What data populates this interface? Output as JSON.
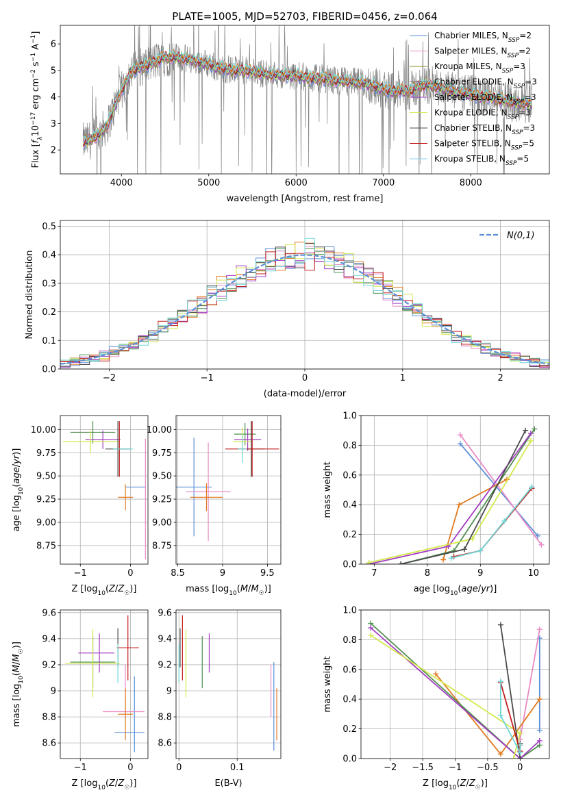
{
  "colors": {
    "Chabrier MILES": "#5b8fd8",
    "Salpeter MILES": "#e88bc4",
    "Kroupa MILES": "#8c8c2a",
    "Chabrier ELODIE": "#7c7c7c",
    "Salpeter ELODIE": "#a23bc0",
    "Kroupa ELODIE": "#d4e84a",
    "Chabrier STELIB": "#4a4a4a",
    "Salpeter STELIB": "#c41c1c",
    "Kroupa STELIB": "#8fd0ec",
    "orange": "#e07a1f",
    "green": "#4f8f4f",
    "cyan": "#6fd6d6",
    "normal": "#5b8fd8"
  },
  "chart_data": [
    {
      "type": "line",
      "title": "PLATE=1005, MJD=52703, FIBERID=0456, z=0.064",
      "xlabel": "wavelength [Angstrom, rest frame]",
      "ylabel": "Flux [f_λ 10^-17 erg cm^-2 s^-1 A^-1]",
      "xlim": [
        3300,
        8900
      ],
      "ylim": [
        1.1,
        6.7
      ],
      "xticks": [
        4000,
        5000,
        6000,
        7000,
        8000
      ],
      "yticks": [
        2,
        3,
        4,
        5,
        6
      ],
      "legend": "upper right",
      "legend_entries": [
        {
          "pre": "Chabrier MILES, N",
          "sub": "SSP",
          "post": "=2",
          "key": "Chabrier MILES"
        },
        {
          "pre": "Salpeter MILES, N",
          "sub": "SSP",
          "post": "=2",
          "key": "Salpeter MILES"
        },
        {
          "pre": "Kroupa MILES, N",
          "sub": "SSP",
          "post": "=3",
          "key": "Kroupa MILES"
        },
        {
          "pre": "Chabrier ELODIE, N",
          "sub": "SSP",
          "post": "=3",
          "key": "Chabrier ELODIE"
        },
        {
          "pre": "Salpeter ELODIE, N",
          "sub": "SSP",
          "post": "=3",
          "key": "Salpeter ELODIE"
        },
        {
          "pre": "Kroupa ELODIE, N",
          "sub": "SSP",
          "post": "=3",
          "key": "Kroupa ELODIE"
        },
        {
          "pre": "Chabrier STELIB, N",
          "sub": "SSP",
          "post": "=3",
          "key": "Chabrier STELIB"
        },
        {
          "pre": "Salpeter STELIB, N",
          "sub": "SSP",
          "post": "=5",
          "key": "Salpeter STELIB"
        },
        {
          "pre": "Kroupa STELIB, N",
          "sub": "SSP",
          "post": "=5",
          "key": "Kroupa STELIB"
        }
      ],
      "continuum": [
        [
          3600,
          2.3
        ],
        [
          3750,
          2.6
        ],
        [
          3850,
          3.0
        ],
        [
          3950,
          3.9
        ],
        [
          4000,
          4.2
        ],
        [
          4100,
          4.9
        ],
        [
          4200,
          5.1
        ],
        [
          4300,
          5.2
        ],
        [
          4400,
          5.35
        ],
        [
          4500,
          5.5
        ],
        [
          4600,
          5.5
        ],
        [
          4700,
          5.45
        ],
        [
          4800,
          5.4
        ],
        [
          4900,
          5.3
        ],
        [
          5000,
          5.25
        ],
        [
          5100,
          5.1
        ],
        [
          5200,
          5.05
        ],
        [
          5300,
          5.0
        ],
        [
          5400,
          5.0
        ],
        [
          5500,
          4.95
        ],
        [
          5600,
          4.9
        ],
        [
          5700,
          4.85
        ],
        [
          5800,
          4.85
        ],
        [
          5900,
          4.8
        ],
        [
          6000,
          4.8
        ],
        [
          6100,
          4.75
        ],
        [
          6200,
          4.7
        ],
        [
          6300,
          4.7
        ],
        [
          6400,
          4.65
        ],
        [
          6500,
          4.6
        ],
        [
          6600,
          4.6
        ],
        [
          6700,
          4.55
        ],
        [
          6800,
          4.5
        ],
        [
          6900,
          4.4
        ],
        [
          7000,
          4.3
        ],
        [
          7100,
          4.2
        ],
        [
          7200,
          4.25
        ],
        [
          7300,
          4.2
        ],
        [
          7400,
          4.4
        ],
        [
          7500,
          4.45
        ],
        [
          7600,
          4.4
        ],
        [
          7700,
          4.3
        ],
        [
          7800,
          4.2
        ],
        [
          7900,
          4.15
        ],
        [
          8000,
          4.1
        ],
        [
          8100,
          4.0
        ],
        [
          8200,
          4.0
        ],
        [
          8300,
          3.9
        ],
        [
          8400,
          3.85
        ],
        [
          8500,
          3.8
        ],
        [
          8650,
          3.75
        ]
      ]
    },
    {
      "type": "bar",
      "title": "",
      "xlabel": "(data-model)/error",
      "ylabel": "Normed distribution",
      "xlim": [
        -2.5,
        2.5
      ],
      "ylim": [
        0,
        0.52
      ],
      "xticks": [
        -2,
        -1,
        0,
        1,
        2
      ],
      "yticks": [
        0.0,
        0.1,
        0.2,
        0.3,
        0.4,
        0.5
      ],
      "legend": "upper right",
      "legend_label": "N(0,1)",
      "bin_width": 0.1
    },
    {
      "type": "scatter",
      "xlabel": "Z [log10(Z/Z☉)]",
      "ylabel": "age  [log10(age/yr)]",
      "xlim": [
        -1.4,
        0.35
      ],
      "ylim": [
        8.55,
        10.15
      ],
      "xticks": [
        -1,
        0
      ],
      "yticks": [
        8.75,
        9.0,
        9.25,
        9.5,
        9.75,
        10.0
      ],
      "points": [
        {
          "x": 0.1,
          "y": 9.38,
          "xerr": [
            0.2,
            0.2
          ],
          "yerr": [
            0.0,
            0.0
          ],
          "color": "Chabrier MILES"
        },
        {
          "x": 0.3,
          "y": 9.25,
          "xerr": [
            0.0,
            0.0
          ],
          "yerr": [
            0.65,
            0.65
          ],
          "color": "Salpeter MILES"
        },
        {
          "x": -0.1,
          "y": 9.27,
          "xerr": [
            0.15,
            0.15
          ],
          "yerr": [
            0.14,
            0.14
          ],
          "color": "orange"
        },
        {
          "x": -0.75,
          "y": 9.97,
          "xerr": [
            0.45,
            0.45
          ],
          "yerr": [
            0.12,
            0.12
          ],
          "color": "green"
        },
        {
          "x": -0.55,
          "y": 9.89,
          "xerr": [
            0.35,
            0.35
          ],
          "yerr": [
            0.1,
            0.1
          ],
          "color": "Salpeter ELODIE"
        },
        {
          "x": -0.8,
          "y": 9.87,
          "xerr": [
            0.55,
            0.55
          ],
          "yerr": [
            0.12,
            0.12
          ],
          "color": "Kroupa ELODIE"
        },
        {
          "x": -0.25,
          "y": 9.79,
          "xerr": [
            0.25,
            0.25
          ],
          "yerr": [
            0.3,
            0.3
          ],
          "color": "Chabrier STELIB"
        },
        {
          "x": -0.22,
          "y": 9.79,
          "xerr": [
            0.0,
            0.0
          ],
          "yerr": [
            0.3,
            0.3
          ],
          "color": "Salpeter STELIB"
        },
        {
          "x": -0.15,
          "y": 9.79,
          "xerr": [
            0.2,
            0.2
          ],
          "yerr": [
            0.0,
            0.0
          ],
          "color": "cyan"
        }
      ]
    },
    {
      "type": "scatter",
      "xlabel": "mass [log10(M/M☉)]",
      "ylabel": "",
      "xlim": [
        8.48,
        9.65
      ],
      "ylim": [
        8.55,
        10.15
      ],
      "xticks": [
        8.5,
        9.0,
        9.5
      ],
      "yticks": [
        8.75,
        9.0,
        9.25,
        9.5,
        9.75,
        10.0
      ],
      "points": [
        {
          "x": 8.68,
          "y": 9.38,
          "xerr": [
            0.2,
            0.2
          ],
          "yerr": [
            0.53,
            0.53
          ],
          "color": "Chabrier MILES"
        },
        {
          "x": 8.84,
          "y": 9.33,
          "xerr": [
            0.25,
            0.25
          ],
          "yerr": [
            0.53,
            0.53
          ],
          "color": "Salpeter MILES"
        },
        {
          "x": 8.82,
          "y": 9.27,
          "xerr": [
            0.18,
            0.18
          ],
          "yerr": [
            0.15,
            0.15
          ],
          "color": "orange"
        },
        {
          "x": 9.25,
          "y": 9.95,
          "xerr": [
            0.12,
            0.12
          ],
          "yerr": [
            0.12,
            0.12
          ],
          "color": "green"
        },
        {
          "x": 9.28,
          "y": 9.89,
          "xerr": [
            0.15,
            0.15
          ],
          "yerr": [
            0.12,
            0.12
          ],
          "color": "Salpeter ELODIE"
        },
        {
          "x": 9.22,
          "y": 9.87,
          "xerr": [
            0.1,
            0.1
          ],
          "yerr": [
            0.15,
            0.15
          ],
          "color": "Kroupa ELODIE"
        },
        {
          "x": 9.32,
          "y": 9.79,
          "xerr": [
            0.15,
            0.15
          ],
          "yerr": [
            0.3,
            0.3
          ],
          "color": "Chabrier STELIB"
        },
        {
          "x": 9.33,
          "y": 9.79,
          "xerr": [
            0.3,
            0.3
          ],
          "yerr": [
            0.3,
            0.3
          ],
          "color": "Salpeter STELIB"
        },
        {
          "x": 9.22,
          "y": 9.79,
          "xerr": [
            0.05,
            0.05
          ],
          "yerr": [
            0.15,
            0.15
          ],
          "color": "cyan"
        }
      ]
    },
    {
      "type": "line",
      "xlabel": "age  [log10(age/yr)]",
      "ylabel": "mass weight",
      "xlim": [
        6.75,
        10.3
      ],
      "ylim": [
        0,
        1.0
      ],
      "xticks": [
        7,
        8,
        9,
        10
      ],
      "yticks": [
        0.0,
        0.2,
        0.4,
        0.6,
        0.8,
        1.0
      ],
      "series": [
        {
          "color": "Chabrier MILES",
          "x": [
            8.62,
            10.08
          ],
          "y": [
            0.81,
            0.19
          ]
        },
        {
          "color": "Salpeter MILES",
          "x": [
            8.62,
            10.15
          ],
          "y": [
            0.87,
            0.13
          ]
        },
        {
          "color": "orange",
          "x": [
            8.3,
            8.6,
            9.5
          ],
          "y": [
            0.03,
            0.4,
            0.57
          ]
        },
        {
          "color": "green",
          "x": [
            7.5,
            8.5,
            10.02
          ],
          "y": [
            0.0,
            0.09,
            0.91
          ]
        },
        {
          "color": "Salpeter ELODIE",
          "x": [
            6.9,
            8.4,
            9.95
          ],
          "y": [
            0.0,
            0.12,
            0.88
          ]
        },
        {
          "color": "Kroupa ELODIE",
          "x": [
            6.9,
            8.85,
            9.95
          ],
          "y": [
            0.01,
            0.17,
            0.83
          ]
        },
        {
          "color": "Chabrier STELIB",
          "x": [
            7.5,
            8.7,
            9.85
          ],
          "y": [
            0.0,
            0.1,
            0.9
          ]
        },
        {
          "color": "Salpeter STELIB",
          "x": [
            8.5,
            9.0,
            9.97
          ],
          "y": [
            0.05,
            0.09,
            0.51
          ]
        },
        {
          "color": "cyan",
          "x": [
            8.45,
            9.0,
            9.45,
            9.97
          ],
          "y": [
            0.04,
            0.09,
            0.29,
            0.52
          ]
        }
      ]
    },
    {
      "type": "scatter",
      "xlabel": "Z [log10(Z/Z☉)]",
      "ylabel": "mass [log10(M/M☉)]",
      "xlim": [
        -1.4,
        0.35
      ],
      "ylim": [
        8.48,
        9.62
      ],
      "xticks": [
        -1,
        0
      ],
      "yticks": [
        8.6,
        8.8,
        9.0,
        9.2,
        9.4,
        9.6
      ],
      "points": [
        {
          "x": 0.08,
          "y": 8.68,
          "xerr": [
            0.4,
            0.2
          ],
          "yerr": [
            0.15,
            0.43
          ],
          "color": "Chabrier MILES"
        },
        {
          "x": -0.1,
          "y": 8.84,
          "xerr": [
            0.45,
            0.38
          ],
          "yerr": [
            0.08,
            0.36
          ],
          "color": "Salpeter MILES"
        },
        {
          "x": -0.1,
          "y": 8.82,
          "xerr": [
            0.15,
            0.15
          ],
          "yerr": [
            0.2,
            0.2
          ],
          "color": "orange"
        },
        {
          "x": -0.75,
          "y": 9.22,
          "xerr": [
            0.45,
            0.45
          ],
          "yerr": [
            0.2,
            0.2
          ],
          "color": "green"
        },
        {
          "x": -0.62,
          "y": 9.29,
          "xerr": [
            0.42,
            0.3
          ],
          "yerr": [
            0.15,
            0.15
          ],
          "color": "Salpeter ELODIE"
        },
        {
          "x": -0.75,
          "y": 9.21,
          "xerr": [
            0.55,
            0.55
          ],
          "yerr": [
            0.26,
            0.26
          ],
          "color": "Kroupa ELODIE"
        },
        {
          "x": -0.25,
          "y": 9.33,
          "xerr": [
            0.0,
            0.0
          ],
          "yerr": [
            0.15,
            0.15
          ],
          "color": "Chabrier STELIB"
        },
        {
          "x": -0.05,
          "y": 9.33,
          "xerr": [
            0.22,
            0.22
          ],
          "yerr": [
            0.25,
            0.25
          ],
          "color": "Salpeter STELIB"
        },
        {
          "x": -0.25,
          "y": 9.21,
          "xerr": [
            0.0,
            0.0
          ],
          "yerr": [
            0.15,
            0.15
          ],
          "color": "cyan"
        }
      ]
    },
    {
      "type": "scatter",
      "xlabel": "E(B-V)",
      "ylabel": "",
      "xlim": [
        -0.005,
        0.175
      ],
      "ylim": [
        8.48,
        9.62
      ],
      "xticks": [
        0.0,
        0.1
      ],
      "yticks": [
        8.6,
        8.8,
        9.0,
        9.2,
        9.4,
        9.6
      ],
      "points": [
        {
          "x": 0.163,
          "y": 8.84,
          "xerr": [
            0,
            0
          ],
          "yerr": [
            0.3,
            0.38
          ],
          "color": "Chabrier MILES"
        },
        {
          "x": 0.158,
          "y": 9.0,
          "xerr": [
            0,
            0
          ],
          "yerr": [
            0.2,
            0.2
          ],
          "color": "Salpeter MILES"
        },
        {
          "x": 0.168,
          "y": 8.82,
          "xerr": [
            0,
            0
          ],
          "yerr": [
            0.2,
            0.2
          ],
          "color": "orange"
        },
        {
          "x": 0.04,
          "y": 9.22,
          "xerr": [
            0,
            0
          ],
          "yerr": [
            0.2,
            0.2
          ],
          "color": "green"
        },
        {
          "x": 0.052,
          "y": 9.29,
          "xerr": [
            0,
            0
          ],
          "yerr": [
            0.15,
            0.15
          ],
          "color": "Salpeter ELODIE"
        },
        {
          "x": 0.012,
          "y": 9.21,
          "xerr": [
            0,
            0
          ],
          "yerr": [
            0.26,
            0.26
          ],
          "color": "Kroupa ELODIE"
        },
        {
          "x": 0.002,
          "y": 9.33,
          "xerr": [
            0,
            0
          ],
          "yerr": [
            0.15,
            0.15
          ],
          "color": "Chabrier STELIB"
        },
        {
          "x": 0.006,
          "y": 9.33,
          "xerr": [
            0,
            0
          ],
          "yerr": [
            0.25,
            0.25
          ],
          "color": "Salpeter STELIB"
        },
        {
          "x": 0.0,
          "y": 9.21,
          "xerr": [
            0,
            0
          ],
          "yerr": [
            0.15,
            0.15
          ],
          "color": "cyan"
        }
      ]
    },
    {
      "type": "line",
      "xlabel": "Z [log10(Z/Z☉)]",
      "ylabel": "mass weight",
      "xlim": [
        -2.45,
        0.45
      ],
      "ylim": [
        0,
        1.0
      ],
      "xticks": [
        -2.0,
        -1.5,
        -1.0,
        -0.5,
        0.0
      ],
      "yticks": [
        0.0,
        0.2,
        0.4,
        0.6,
        0.8,
        1.0
      ],
      "series": [
        {
          "color": "Chabrier MILES",
          "x": [
            0.3,
            0.3
          ],
          "y": [
            0.19,
            0.81
          ]
        },
        {
          "color": "Salpeter MILES",
          "x": [
            0.0,
            0.3
          ],
          "y": [
            0.13,
            0.87
          ]
        },
        {
          "color": "orange",
          "x": [
            -1.3,
            -0.3,
            0.3
          ],
          "y": [
            0.57,
            0.03,
            0.4
          ]
        },
        {
          "color": "green",
          "x": [
            -2.3,
            0.0,
            0.3
          ],
          "y": [
            0.91,
            0.0,
            0.09
          ]
        },
        {
          "color": "Salpeter ELODIE",
          "x": [
            -2.3,
            0.0,
            0.3
          ],
          "y": [
            0.88,
            0.0,
            0.12
          ]
        },
        {
          "color": "Kroupa ELODIE",
          "x": [
            -2.3,
            0.0,
            -0.1
          ],
          "y": [
            0.83,
            0.17,
            0.0
          ]
        },
        {
          "color": "Chabrier STELIB",
          "x": [
            -0.3,
            0.0,
            0.0
          ],
          "y": [
            0.9,
            0.0,
            0.1
          ]
        },
        {
          "color": "Salpeter STELIB",
          "x": [
            -0.3,
            0.0,
            0.0
          ],
          "y": [
            0.51,
            0.05,
            0.09
          ]
        },
        {
          "color": "cyan",
          "x": [
            -0.3,
            -0.3,
            0.0,
            0.0
          ],
          "y": [
            0.52,
            0.29,
            0.04,
            0.09
          ]
        }
      ]
    }
  ]
}
